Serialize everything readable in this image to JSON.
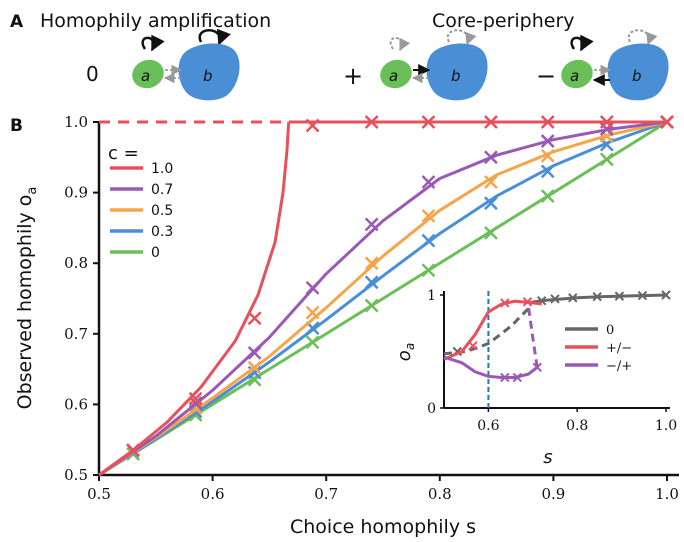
{
  "panel_a": {
    "letter": "A",
    "title_left": "Homophily amplification",
    "title_right": "Core-periphery",
    "motif_signs": [
      "0",
      "+",
      "−"
    ],
    "node_a_label": "a",
    "node_b_label": "b",
    "colors": {
      "node_a": "#6bbf59",
      "node_b": "#4a8fd6",
      "edge_solid": "#111111",
      "edge_dashed": "#999999"
    }
  },
  "panel_b": {
    "letter": "B"
  },
  "chart_data": [
    {
      "type": "line",
      "xlabel": "Choice  homophily s",
      "ylabel": "Observed homophily o",
      "ylabel_subscript": "a",
      "xlim": [
        0.5,
        1.0
      ],
      "ylim": [
        0.5,
        1.0
      ],
      "xticks": [
        "0.5",
        "0.6",
        "0.7",
        "0.8",
        "0.9",
        "1.0"
      ],
      "yticks": [
        "0.5",
        "0.6",
        "0.7",
        "0.8",
        "0.9",
        "1.0"
      ],
      "legend": {
        "title": "c =",
        "placement": "top-left"
      },
      "series": [
        {
          "name": "1.0",
          "color": "#e8505b",
          "x": [
            0.5,
            0.53,
            0.56,
            0.59,
            0.62,
            0.64,
            0.655,
            0.662,
            0.6655,
            0.667
          ],
          "y": [
            0.5,
            0.535,
            0.575,
            0.625,
            0.69,
            0.755,
            0.83,
            0.9,
            0.96,
            1.0
          ],
          "markers": [
            [
              0.53,
              0.535
            ],
            [
              0.585,
              0.608
            ],
            [
              0.637,
              0.722
            ],
            [
              0.688,
              0.995
            ],
            [
              0.74,
              1.0
            ],
            [
              0.79,
              1.0
            ],
            [
              0.845,
              1.0
            ],
            [
              0.895,
              1.0
            ],
            [
              0.947,
              1.0
            ],
            [
              1.0,
              1.0
            ]
          ],
          "flat_dashed": [
            0.5,
            0.667
          ],
          "flat_solid": [
            0.667,
            1.0
          ]
        },
        {
          "name": "0.7",
          "color": "#9b59b6",
          "x": [
            0.5,
            0.55,
            0.6,
            0.65,
            0.7,
            0.75,
            0.8,
            0.85,
            0.9,
            0.95,
            1.0
          ],
          "y": [
            0.5,
            0.555,
            0.62,
            0.695,
            0.785,
            0.86,
            0.92,
            0.953,
            0.975,
            0.99,
            1.0
          ],
          "markers": [
            [
              0.53,
              0.535
            ],
            [
              0.585,
              0.602
            ],
            [
              0.637,
              0.673
            ],
            [
              0.688,
              0.765
            ],
            [
              0.74,
              0.855
            ],
            [
              0.79,
              0.915
            ],
            [
              0.845,
              0.95
            ],
            [
              0.895,
              0.973
            ],
            [
              0.947,
              0.99
            ],
            [
              1.0,
              1.0
            ]
          ]
        },
        {
          "name": "0.5",
          "color": "#f5a54a",
          "x": [
            0.5,
            0.55,
            0.6,
            0.65,
            0.7,
            0.75,
            0.8,
            0.85,
            0.9,
            0.95,
            1.0
          ],
          "y": [
            0.5,
            0.553,
            0.609,
            0.668,
            0.737,
            0.81,
            0.875,
            0.925,
            0.958,
            0.982,
            1.0
          ],
          "markers": [
            [
              0.53,
              0.535
            ],
            [
              0.585,
              0.595
            ],
            [
              0.637,
              0.652
            ],
            [
              0.688,
              0.73
            ],
            [
              0.74,
              0.8
            ],
            [
              0.79,
              0.867
            ],
            [
              0.845,
              0.915
            ],
            [
              0.895,
              0.952
            ],
            [
              0.947,
              0.98
            ],
            [
              1.0,
              1.0
            ]
          ]
        },
        {
          "name": "0.3",
          "color": "#4a8fd6",
          "x": [
            0.5,
            0.55,
            0.6,
            0.65,
            0.7,
            0.75,
            0.8,
            0.85,
            0.9,
            0.95,
            1.0
          ],
          "y": [
            0.5,
            0.551,
            0.604,
            0.66,
            0.72,
            0.782,
            0.842,
            0.895,
            0.938,
            0.972,
            1.0
          ],
          "markers": [
            [
              0.53,
              0.535
            ],
            [
              0.585,
              0.59
            ],
            [
              0.637,
              0.645
            ],
            [
              0.688,
              0.708
            ],
            [
              0.74,
              0.773
            ],
            [
              0.79,
              0.832
            ],
            [
              0.845,
              0.885
            ],
            [
              0.895,
              0.93
            ],
            [
              0.947,
              0.968
            ],
            [
              1.0,
              1.0
            ]
          ]
        },
        {
          "name": "0",
          "color": "#6bbf59",
          "x": [
            0.5,
            1.0
          ],
          "y": [
            0.5,
            1.0
          ],
          "markers": [
            [
              0.53,
              0.53
            ],
            [
              0.585,
              0.585
            ],
            [
              0.637,
              0.635
            ],
            [
              0.688,
              0.688
            ],
            [
              0.74,
              0.74
            ],
            [
              0.79,
              0.79
            ],
            [
              0.845,
              0.843
            ],
            [
              0.895,
              0.895
            ],
            [
              0.947,
              0.947
            ],
            [
              1.0,
              1.0
            ]
          ]
        }
      ]
    },
    {
      "type": "line",
      "xlabel": "s",
      "ylabel": "o",
      "ylabel_subscript": "a",
      "xlim": [
        0.5,
        1.0
      ],
      "ylim": [
        0,
        1
      ],
      "xticks": [
        "0.6",
        "0.8",
        "1.0"
      ],
      "yticks": [
        "0",
        "1"
      ],
      "vline_x": 0.6,
      "vline_color": "#1f77b4",
      "legend": {
        "placement": "right"
      },
      "series": [
        {
          "name": "0",
          "color": "#666666",
          "dashed": {
            "x": [
              0.5,
              0.55,
              0.6,
              0.65,
              0.69
            ],
            "y": [
              0.48,
              0.5,
              0.57,
              0.72,
              0.88
            ]
          },
          "solid": {
            "x": [
              0.69,
              0.72,
              0.75,
              0.8,
              0.85,
              0.9,
              0.95,
              1.0
            ],
            "y": [
              0.93,
              0.95,
              0.96,
              0.975,
              0.985,
              0.99,
              0.995,
              1.0
            ]
          },
          "markers": [
            [
              0.53,
              0.5
            ],
            [
              0.72,
              0.95
            ],
            [
              0.75,
              0.965
            ],
            [
              0.79,
              0.975
            ],
            [
              0.845,
              0.985
            ],
            [
              0.895,
              0.99
            ],
            [
              0.947,
              0.995
            ],
            [
              1.0,
              1.0
            ]
          ]
        },
        {
          "name": "+/−",
          "color": "#e8505b",
          "solid": {
            "x": [
              0.5,
              0.54,
              0.57,
              0.6,
              0.63,
              0.66,
              0.7,
              0.72
            ],
            "y": [
              0.43,
              0.5,
              0.65,
              0.85,
              0.92,
              0.945,
              0.93,
              0.92
            ]
          },
          "markers": [
            [
              0.565,
              0.55
            ],
            [
              0.637,
              0.93
            ],
            [
              0.688,
              0.94
            ]
          ]
        },
        {
          "name": "−/+",
          "color": "#9b59b6",
          "solid": {
            "x": [
              0.5,
              0.54,
              0.57,
              0.6,
              0.63,
              0.66,
              0.69,
              0.71
            ],
            "y": [
              0.45,
              0.4,
              0.32,
              0.28,
              0.27,
              0.27,
              0.3,
              0.36
            ]
          },
          "dashed": {
            "x": [
              0.71,
              0.7,
              0.69
            ],
            "y": [
              0.36,
              0.62,
              0.9
            ]
          },
          "markers": [
            [
              0.637,
              0.27
            ],
            [
              0.665,
              0.27
            ],
            [
              0.71,
              0.36
            ]
          ]
        }
      ]
    }
  ]
}
